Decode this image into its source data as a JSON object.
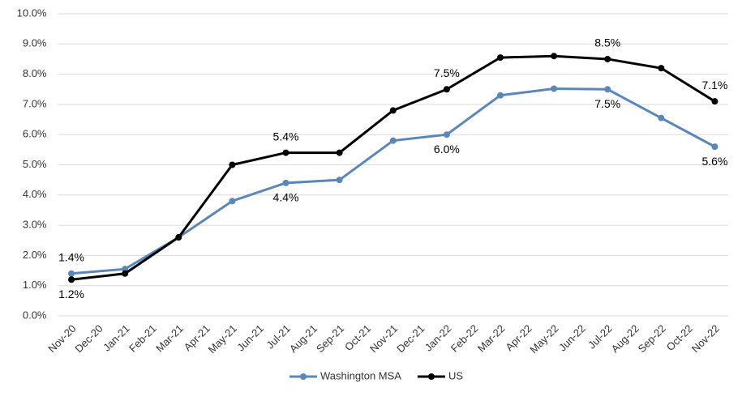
{
  "chart_data": {
    "type": "line",
    "categories": [
      "Nov-20",
      "Dec-20",
      "Jan-21",
      "Feb-21",
      "Mar-21",
      "Apr-21",
      "May-21",
      "Jun-21",
      "Jul-21",
      "Aug-21",
      "Sep-21",
      "Oct-21",
      "Nov-21",
      "Dec-21",
      "Jan-22",
      "Feb-22",
      "Mar-22",
      "Apr-22",
      "May-22",
      "Jun-22",
      "Jul-22",
      "Aug-22",
      "Sep-22",
      "Oct-22",
      "Nov-22"
    ],
    "series": [
      {
        "name": "Washington MSA",
        "color": "#5b87b8",
        "x": [
          "Nov-20",
          "Jan-21",
          "Mar-21",
          "May-21",
          "Jul-21",
          "Sep-21",
          "Nov-21",
          "Jan-22",
          "Mar-22",
          "May-22",
          "Jul-22",
          "Sep-22",
          "Nov-22"
        ],
        "values": [
          1.4,
          1.55,
          2.6,
          3.8,
          4.4,
          4.5,
          5.8,
          6.0,
          7.3,
          7.52,
          7.5,
          6.55,
          5.6
        ],
        "value_labels": [
          "1.4%",
          null,
          null,
          null,
          "4.4%",
          null,
          null,
          "6.0%",
          null,
          null,
          "7.5%",
          null,
          "5.6%"
        ]
      },
      {
        "name": "US",
        "color": "#000000",
        "x": [
          "Nov-20",
          "Jan-21",
          "Mar-21",
          "May-21",
          "Jul-21",
          "Sep-21",
          "Nov-21",
          "Jan-22",
          "Mar-22",
          "May-22",
          "Jul-22",
          "Sep-22",
          "Nov-22"
        ],
        "values": [
          1.2,
          1.4,
          2.6,
          5.0,
          5.4,
          5.4,
          6.8,
          7.5,
          8.55,
          8.6,
          8.5,
          8.2,
          7.1
        ],
        "value_labels": [
          "1.2%",
          null,
          null,
          null,
          "5.4%",
          null,
          null,
          "7.5%",
          null,
          null,
          "8.5%",
          null,
          "7.1%"
        ]
      }
    ],
    "ylim": [
      0,
      10
    ],
    "yticks": [
      {
        "value": 0,
        "label": "0.0%"
      },
      {
        "value": 1,
        "label": "1.0%"
      },
      {
        "value": 2,
        "label": "2.0%"
      },
      {
        "value": 3,
        "label": "3.0%"
      },
      {
        "value": 4,
        "label": "4.0%"
      },
      {
        "value": 5,
        "label": "5.0%"
      },
      {
        "value": 6,
        "label": "6.0%"
      },
      {
        "value": 7,
        "label": "7.0%"
      },
      {
        "value": 8,
        "label": "8.0%"
      },
      {
        "value": 9,
        "label": "9.0%"
      },
      {
        "value": 10,
        "label": "10.0%"
      }
    ],
    "grid": true,
    "legend": "bottom"
  }
}
